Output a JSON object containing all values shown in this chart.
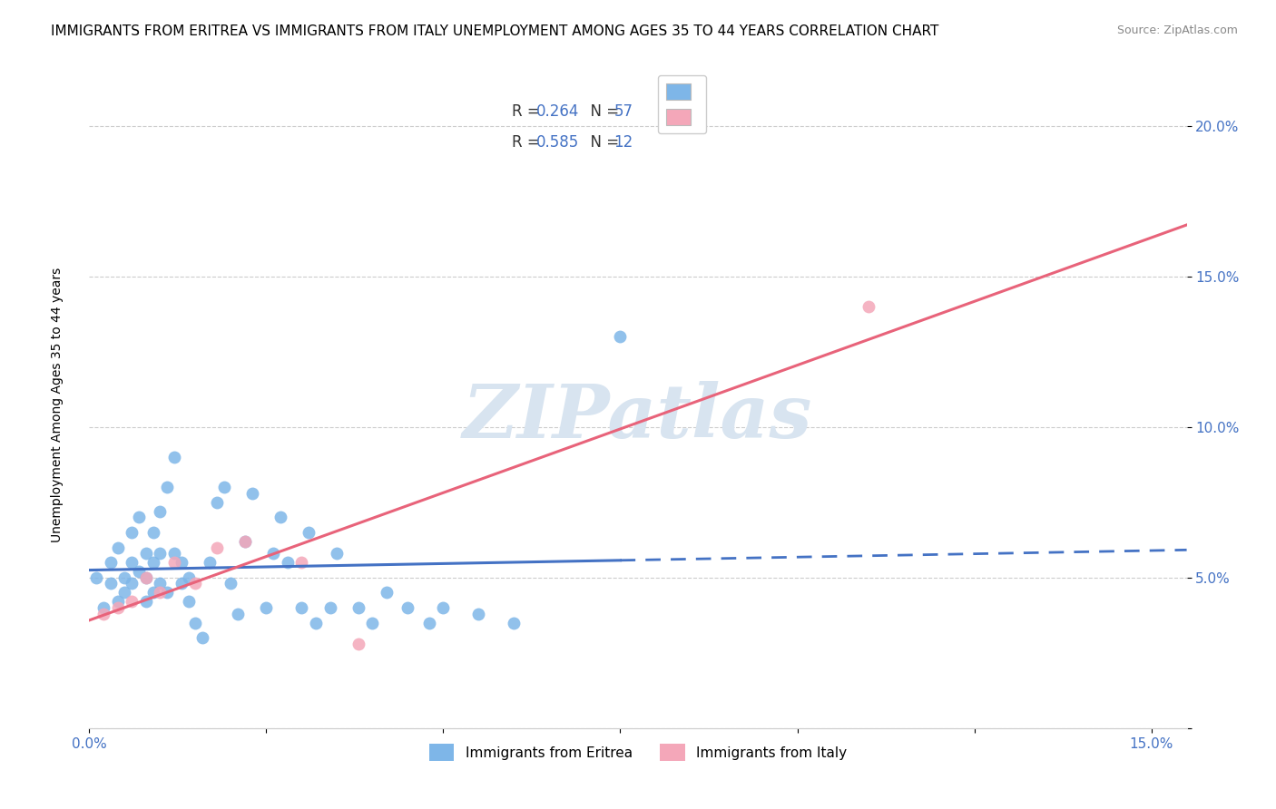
{
  "title": "IMMIGRANTS FROM ERITREA VS IMMIGRANTS FROM ITALY UNEMPLOYMENT AMONG AGES 35 TO 44 YEARS CORRELATION CHART",
  "source": "Source: ZipAtlas.com",
  "ylabel": "Unemployment Among Ages 35 to 44 years",
  "xlim": [
    0.0,
    0.155
  ],
  "ylim": [
    0.0,
    0.215
  ],
  "xticks": [
    0.0,
    0.025,
    0.05,
    0.075,
    0.1,
    0.125,
    0.15
  ],
  "yticks": [
    0.0,
    0.05,
    0.1,
    0.15,
    0.2
  ],
  "ytick_labels": [
    "",
    "5.0%",
    "10.0%",
    "15.0%",
    "20.0%"
  ],
  "xtick_labels": [
    "0.0%",
    "",
    "",
    "",
    "",
    "",
    "15.0%"
  ],
  "legend_r_eritrea": "0.264",
  "legend_n_eritrea": "57",
  "legend_r_italy": "0.585",
  "legend_n_italy": "12",
  "color_eritrea": "#7EB6E8",
  "color_italy": "#F4A7B9",
  "line_color_eritrea": "#4472C4",
  "line_color_italy": "#E8637A",
  "watermark": "ZIPatlas",
  "watermark_color": "#D8E4F0",
  "background_color": "#FFFFFF",
  "eritrea_x": [
    0.001,
    0.002,
    0.003,
    0.003,
    0.004,
    0.004,
    0.005,
    0.005,
    0.006,
    0.006,
    0.006,
    0.007,
    0.007,
    0.008,
    0.008,
    0.008,
    0.009,
    0.009,
    0.009,
    0.01,
    0.01,
    0.01,
    0.011,
    0.011,
    0.012,
    0.012,
    0.013,
    0.013,
    0.014,
    0.014,
    0.015,
    0.016,
    0.017,
    0.018,
    0.019,
    0.02,
    0.021,
    0.022,
    0.023,
    0.025,
    0.026,
    0.027,
    0.028,
    0.03,
    0.031,
    0.032,
    0.034,
    0.035,
    0.038,
    0.04,
    0.042,
    0.045,
    0.048,
    0.05,
    0.055,
    0.06,
    0.075
  ],
  "eritrea_y": [
    0.05,
    0.04,
    0.055,
    0.048,
    0.042,
    0.06,
    0.05,
    0.045,
    0.055,
    0.065,
    0.048,
    0.052,
    0.07,
    0.058,
    0.05,
    0.042,
    0.065,
    0.055,
    0.045,
    0.072,
    0.058,
    0.048,
    0.08,
    0.045,
    0.09,
    0.058,
    0.048,
    0.055,
    0.042,
    0.05,
    0.035,
    0.03,
    0.055,
    0.075,
    0.08,
    0.048,
    0.038,
    0.062,
    0.078,
    0.04,
    0.058,
    0.07,
    0.055,
    0.04,
    0.065,
    0.035,
    0.04,
    0.058,
    0.04,
    0.035,
    0.045,
    0.04,
    0.035,
    0.04,
    0.038,
    0.035,
    0.13
  ],
  "italy_x": [
    0.002,
    0.004,
    0.006,
    0.008,
    0.01,
    0.012,
    0.015,
    0.018,
    0.022,
    0.03,
    0.038,
    0.11
  ],
  "italy_y": [
    0.038,
    0.04,
    0.042,
    0.05,
    0.045,
    0.055,
    0.048,
    0.06,
    0.062,
    0.055,
    0.028,
    0.14
  ],
  "grid_color": "#CCCCCC",
  "title_fontsize": 11,
  "axis_label_fontsize": 10,
  "tick_fontsize": 11
}
